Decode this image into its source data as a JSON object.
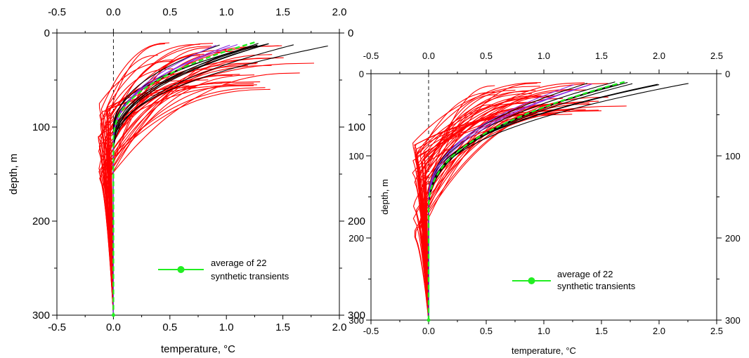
{
  "chart_data": [
    {
      "type": "line",
      "xlabel": "temperature, °C",
      "ylabel": "depth, m",
      "xlim": [
        -0.5,
        2.0
      ],
      "ylim": [
        300,
        0
      ],
      "y_inverted": true,
      "x_ticks": [
        -0.5,
        0.0,
        0.5,
        1.0,
        1.5,
        2.0
      ],
      "x_tick_labels": [
        "-0.5",
        "0.0",
        "0.5",
        "1.0",
        "1.5",
        "2.0"
      ],
      "y_ticks": [
        0,
        100,
        200,
        300
      ],
      "y_tick_labels": [
        "0",
        "100",
        "200",
        "300"
      ],
      "zero_reference_line": {
        "x": 0,
        "style": "dashed"
      },
      "legend": {
        "label_line1": "average of 22",
        "label_line2": "synthetic transients",
        "placement": "lower-right",
        "color": "#22ee22"
      },
      "series": [
        {
          "color": "#ff0000",
          "profile": "red",
          "count": 45,
          "top_depth": [
            10,
            60
          ],
          "surface_value": [
            0.35,
            1.8
          ],
          "min_value": [
            -0.15,
            -0.03
          ],
          "min_depth": [
            75,
            170
          ]
        },
        {
          "color": "#000000",
          "profile": "black",
          "count": 9,
          "top_depth": [
            10,
            14
          ],
          "surface_value": [
            0.85,
            1.9
          ],
          "min_value": [
            0.0,
            0.0
          ],
          "min_depth": [
            100,
            130
          ]
        },
        {
          "color": "#8a2be2",
          "profile": "black",
          "count": 3,
          "top_depth": [
            12,
            14
          ],
          "surface_value": [
            0.9,
            1.1
          ],
          "min_value": [
            0.0,
            0.0
          ],
          "min_depth": [
            110,
            120
          ]
        },
        {
          "color": "#22ee22",
          "profile": "average",
          "count": 1,
          "top_depth": [
            10,
            10
          ],
          "surface_value": [
            1.25,
            1.25
          ],
          "min_value": [
            0.0,
            0.0
          ],
          "min_depth": [
            115,
            115
          ]
        }
      ]
    },
    {
      "type": "line",
      "xlabel": "temperature, °C",
      "ylabel": "depth, m",
      "xlim": [
        -0.5,
        2.5
      ],
      "ylim": [
        300,
        0
      ],
      "y_inverted": true,
      "x_ticks": [
        -0.5,
        0.0,
        0.5,
        1.0,
        1.5,
        2.0,
        2.5
      ],
      "x_tick_labels": [
        "-0.5",
        "0.0",
        "0.5",
        "1.0",
        "1.5",
        "2.0",
        "2.5"
      ],
      "y_ticks": [
        0,
        100,
        200,
        300
      ],
      "y_tick_labels": [
        "0",
        "100",
        "200",
        "300"
      ],
      "zero_reference_line": {
        "x": 0,
        "style": "dashed"
      },
      "legend": {
        "label_line1": "average of 22",
        "label_line2": "synthetic transients",
        "placement": "lower-right",
        "color": "#22ee22"
      },
      "series": [
        {
          "color": "#ff0000",
          "profile": "red",
          "count": 45,
          "top_depth": [
            10,
            50
          ],
          "surface_value": [
            0.35,
            1.8
          ],
          "min_value": [
            -0.15,
            -0.03
          ],
          "min_depth": [
            80,
            200
          ]
        },
        {
          "color": "#000000",
          "profile": "black",
          "count": 9,
          "top_depth": [
            10,
            14
          ],
          "surface_value": [
            1.3,
            2.3
          ],
          "min_value": [
            0.0,
            0.0
          ],
          "min_depth": [
            150,
            175
          ]
        },
        {
          "color": "#8a2be2",
          "profile": "black",
          "count": 3,
          "top_depth": [
            12,
            14
          ],
          "surface_value": [
            1.2,
            1.5
          ],
          "min_value": [
            0.0,
            0.0
          ],
          "min_depth": [
            155,
            165
          ]
        },
        {
          "color": "#22ee22",
          "profile": "average",
          "count": 1,
          "top_depth": [
            10,
            10
          ],
          "surface_value": [
            1.7,
            1.7
          ],
          "min_value": [
            0.0,
            0.0
          ],
          "min_depth": [
            165,
            165
          ]
        }
      ]
    }
  ]
}
